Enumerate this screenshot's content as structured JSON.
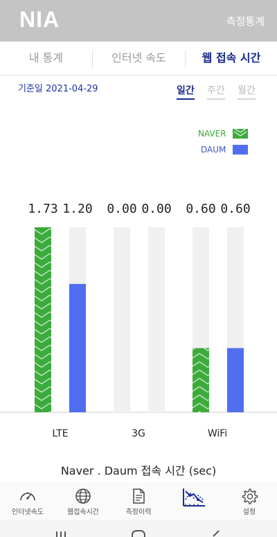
{
  "app": {
    "logo": "NIA",
    "header_right": "측정통계"
  },
  "tabs": [
    {
      "label": "내 통계",
      "active": false
    },
    {
      "label": "인터넷 속도",
      "active": false
    },
    {
      "label": "웹 접속 시간",
      "active": true
    }
  ],
  "ref_date": "기준일 2021-04-29",
  "period_tabs": [
    {
      "label": "일간",
      "active": true
    },
    {
      "label": "주간",
      "active": false
    },
    {
      "label": "월간",
      "active": false
    }
  ],
  "chart_data": {
    "type": "bar",
    "title": "Naver . Daum 접속 시간 (sec)",
    "categories": [
      "LTE",
      "3G",
      "WiFi"
    ],
    "series": [
      {
        "name": "NAVER",
        "values": [
          1.73,
          0.0,
          0.6
        ],
        "labels": [
          "1.73",
          "0.00",
          "0.60"
        ],
        "color": "#3cab3c",
        "pattern": "chevron"
      },
      {
        "name": "DAUM",
        "values": [
          1.2,
          0.0,
          0.6
        ],
        "labels": [
          "1.20",
          "0.00",
          "0.60"
        ],
        "color": "#4f6ff0"
      }
    ],
    "ylim": [
      0,
      1.73
    ],
    "track_color": "#f0f0f0",
    "legend": "top-right"
  },
  "bottom_nav": [
    {
      "label": "인터넷속도",
      "icon": "speedometer-icon"
    },
    {
      "label": "웹접속시간",
      "icon": "globe-icon"
    },
    {
      "label": "측정이력",
      "icon": "document-icon"
    },
    {
      "label": "",
      "icon": "chart-icon",
      "active": true
    },
    {
      "label": "설정",
      "icon": "gear-icon"
    }
  ]
}
